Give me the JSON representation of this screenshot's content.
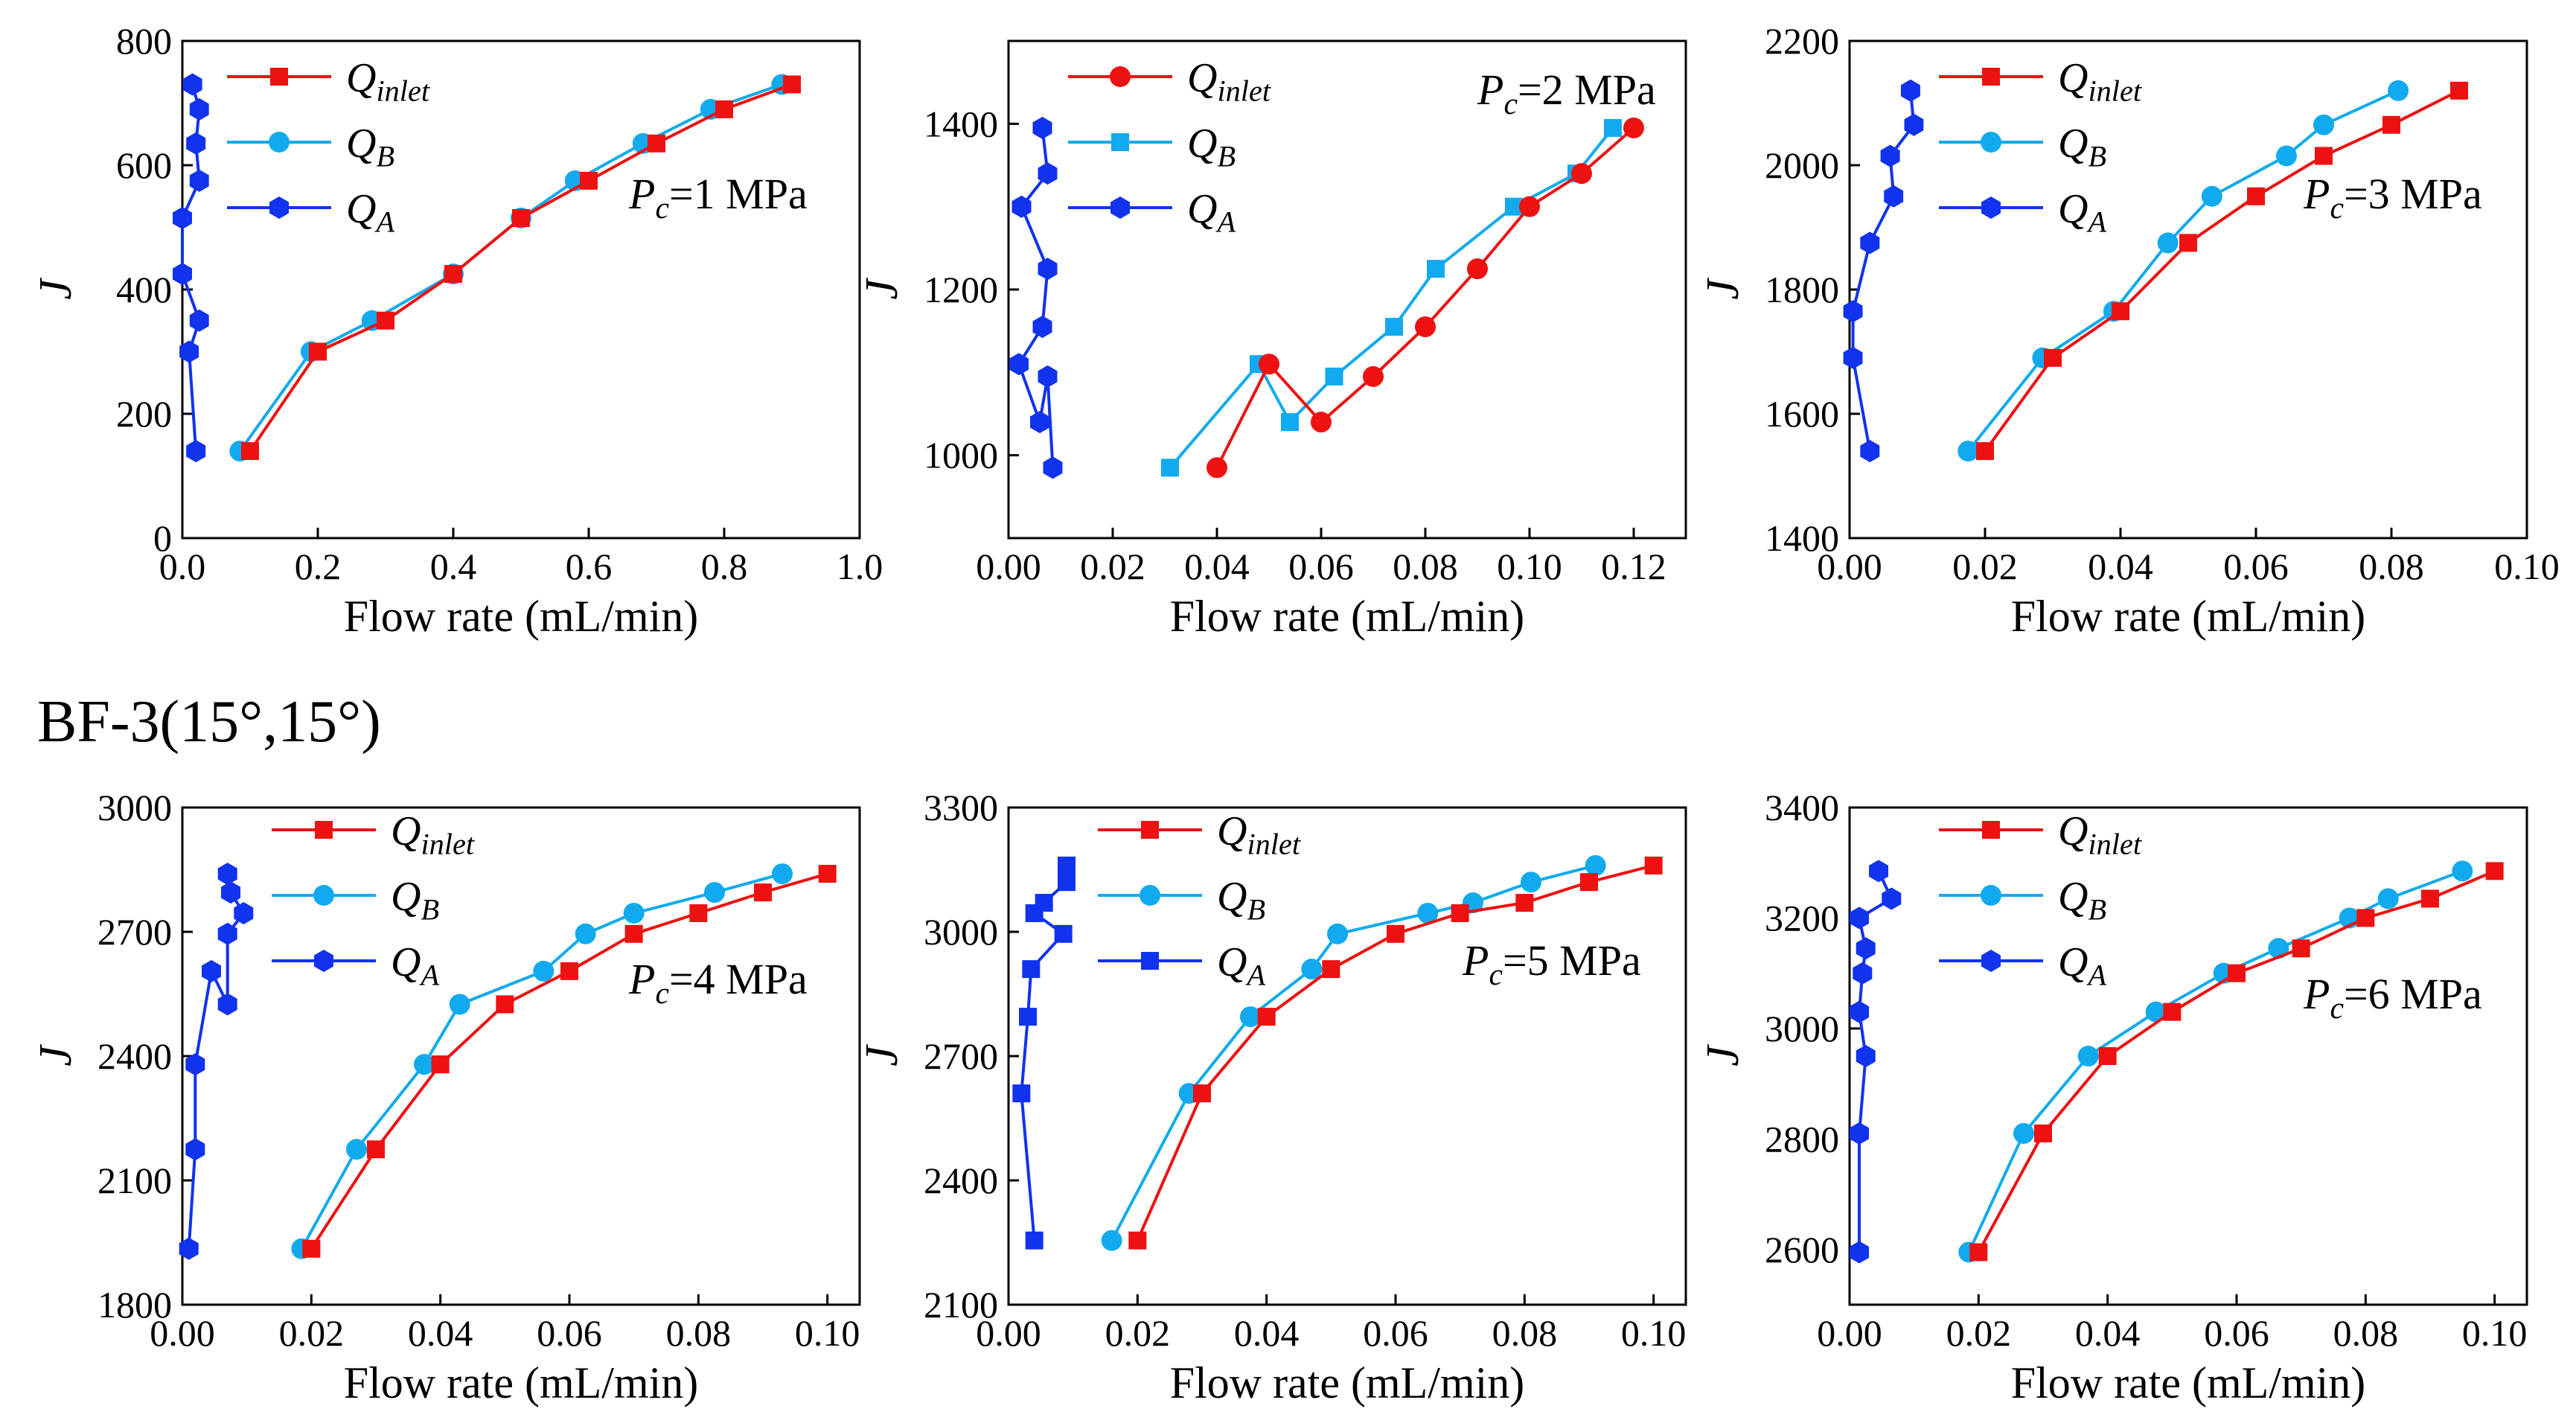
{
  "figure_label": "BF-3(15°,15°)",
  "colors": {
    "inlet": "#ee1111",
    "b": "#11aaee",
    "a": "#1133ee",
    "axis": "#000000"
  },
  "chart_data": [
    {
      "type": "line",
      "title": "",
      "annotation": {
        "prefix": "P",
        "sub": "c",
        "text": "=1 MPa"
      },
      "xlabel": "Flow rate (mL/min)",
      "ylabel": "J",
      "xlim": [
        0.0,
        1.0
      ],
      "ylim": [
        0,
        800
      ],
      "xticks": [
        "0.0",
        "0.2",
        "0.4",
        "0.6",
        "0.8",
        "1.0"
      ],
      "yticks": [
        "0",
        "200",
        "400",
        "600",
        "800"
      ],
      "series": [
        {
          "name": "Q",
          "sub": "inlet",
          "key": "inlet",
          "marker": "square",
          "x": [
            0.1,
            0.2,
            0.3,
            0.4,
            0.5,
            0.6,
            0.7,
            0.8,
            0.9
          ],
          "y": [
            140,
            300,
            350,
            425,
            515,
            575,
            635,
            690,
            730
          ]
        },
        {
          "name": "Q",
          "sub": "B",
          "key": "b",
          "marker": "circle",
          "x": [
            0.085,
            0.19,
            0.28,
            0.4,
            0.5,
            0.58,
            0.68,
            0.78,
            0.885
          ],
          "y": [
            140,
            300,
            350,
            425,
            515,
            575,
            635,
            690,
            730
          ]
        },
        {
          "name": "Q",
          "sub": "A",
          "key": "a",
          "marker": "hexagon",
          "x": [
            0.02,
            0.01,
            0.025,
            0.0,
            0.0,
            0.025,
            0.02,
            0.025,
            0.015
          ],
          "y": [
            140,
            300,
            350,
            425,
            515,
            575,
            635,
            690,
            730
          ]
        }
      ]
    },
    {
      "type": "line",
      "title": "",
      "annotation": {
        "prefix": "P",
        "sub": "c",
        "text": "=2 MPa"
      },
      "xlabel": "Flow rate (mL/min)",
      "ylabel": "J",
      "xlim": [
        0.0,
        0.13
      ],
      "ylim": [
        900,
        1500
      ],
      "xticks": [
        "0.00",
        "0.02",
        "0.04",
        "0.06",
        "0.08",
        "0.10",
        "0.12"
      ],
      "yticks": [
        "1000",
        "1200",
        "1400"
      ],
      "series": [
        {
          "name": "Q",
          "sub": "inlet",
          "key": "inlet",
          "marker": "circle",
          "x": [
            0.04,
            0.05,
            0.06,
            0.07,
            0.08,
            0.09,
            0.1,
            0.11,
            0.12
          ],
          "y": [
            985,
            1110,
            1040,
            1095,
            1155,
            1225,
            1300,
            1340,
            1395
          ]
        },
        {
          "name": "Q",
          "sub": "B",
          "key": "b",
          "marker": "square",
          "x": [
            0.031,
            0.048,
            0.054,
            0.0625,
            0.074,
            0.082,
            0.097,
            0.109,
            0.116
          ],
          "y": [
            985,
            1110,
            1040,
            1095,
            1155,
            1225,
            1300,
            1340,
            1395
          ]
        },
        {
          "name": "Q",
          "sub": "A",
          "key": "a",
          "marker": "hexagon",
          "x": [
            0.0085,
            0.0075,
            0.006,
            0.002,
            0.0065,
            0.0075,
            0.0025,
            0.0075,
            0.0065
          ],
          "y": [
            985,
            1095,
            1040,
            1110,
            1155,
            1225,
            1300,
            1340,
            1395
          ]
        }
      ]
    },
    {
      "type": "line",
      "title": "",
      "annotation": {
        "prefix": "P",
        "sub": "c",
        "text": "=3 MPa"
      },
      "xlabel": "Flow rate (mL/min)",
      "ylabel": "J",
      "xlim": [
        0.0,
        0.1
      ],
      "ylim": [
        1400,
        2200
      ],
      "xticks": [
        "0.00",
        "0.02",
        "0.04",
        "0.06",
        "0.08",
        "0.10"
      ],
      "yticks": [
        "1400",
        "1600",
        "1800",
        "2000",
        "2200"
      ],
      "series": [
        {
          "name": "Q",
          "sub": "inlet",
          "key": "inlet",
          "marker": "square",
          "x": [
            0.02,
            0.03,
            0.04,
            0.05,
            0.06,
            0.07,
            0.08,
            0.09
          ],
          "y": [
            1540,
            1690,
            1765,
            1875,
            1950,
            2015,
            2065,
            2120
          ]
        },
        {
          "name": "Q",
          "sub": "B",
          "key": "b",
          "marker": "circle",
          "x": [
            0.0175,
            0.0285,
            0.039,
            0.047,
            0.0535,
            0.0645,
            0.07,
            0.081
          ],
          "y": [
            1540,
            1690,
            1765,
            1875,
            1950,
            2015,
            2065,
            2120
          ]
        },
        {
          "name": "Q",
          "sub": "A",
          "key": "a",
          "marker": "hexagon",
          "x": [
            0.003,
            0.0005,
            0.0005,
            0.003,
            0.0065,
            0.006,
            0.0095,
            0.009
          ],
          "y": [
            1540,
            1690,
            1765,
            1875,
            1950,
            2015,
            2065,
            2120
          ]
        }
      ]
    },
    {
      "type": "line",
      "title": "",
      "annotation": {
        "prefix": "P",
        "sub": "c",
        "text": "=4 MPa"
      },
      "xlabel": "Flow rate (mL/min)",
      "ylabel": "J",
      "xlim": [
        0.0,
        0.105
      ],
      "ylim": [
        1800,
        3000
      ],
      "xticks": [
        "0.00",
        "0.02",
        "0.04",
        "0.06",
        "0.08",
        "0.10"
      ],
      "yticks": [
        "1800",
        "2100",
        "2400",
        "2700",
        "3000"
      ],
      "series": [
        {
          "name": "Q",
          "sub": "inlet",
          "key": "inlet",
          "marker": "square",
          "x": [
            0.02,
            0.03,
            0.04,
            0.05,
            0.06,
            0.07,
            0.08,
            0.09,
            0.1
          ],
          "y": [
            1935,
            2175,
            2380,
            2525,
            2605,
            2695,
            2745,
            2795,
            2840
          ]
        },
        {
          "name": "Q",
          "sub": "B",
          "key": "b",
          "marker": "circle",
          "x": [
            0.0185,
            0.027,
            0.0375,
            0.043,
            0.056,
            0.0625,
            0.07,
            0.0825,
            0.093
          ],
          "y": [
            1935,
            2175,
            2380,
            2525,
            2605,
            2695,
            2745,
            2795,
            2840
          ]
        },
        {
          "name": "Q",
          "sub": "A",
          "key": "a",
          "marker": "hexagon",
          "x": [
            0.001,
            0.002,
            0.002,
            0.0045,
            0.007,
            0.007,
            0.0095,
            0.0075,
            0.007
          ],
          "y": [
            1935,
            2175,
            2380,
            2605,
            2525,
            2695,
            2745,
            2795,
            2840
          ]
        }
      ]
    },
    {
      "type": "line",
      "title": "",
      "annotation": {
        "prefix": "P",
        "sub": "c",
        "text": "=5 MPa"
      },
      "xlabel": "Flow rate (mL/min)",
      "ylabel": "J",
      "xlim": [
        0.0,
        0.105
      ],
      "ylim": [
        2100,
        3300
      ],
      "xticks": [
        "0.00",
        "0.02",
        "0.04",
        "0.06",
        "0.08",
        "0.10"
      ],
      "yticks": [
        "2100",
        "2400",
        "2700",
        "3000",
        "3300"
      ],
      "series": [
        {
          "name": "Q",
          "sub": "inlet",
          "key": "inlet",
          "marker": "square",
          "x": [
            0.02,
            0.03,
            0.04,
            0.05,
            0.06,
            0.07,
            0.08,
            0.09,
            0.1
          ],
          "y": [
            2255,
            2610,
            2795,
            2910,
            2995,
            3045,
            3070,
            3120,
            3160
          ]
        },
        {
          "name": "Q",
          "sub": "B",
          "key": "b",
          "marker": "circle",
          "x": [
            0.016,
            0.028,
            0.0375,
            0.047,
            0.051,
            0.065,
            0.072,
            0.081,
            0.091
          ],
          "y": [
            2255,
            2610,
            2795,
            2910,
            2995,
            3045,
            3070,
            3120,
            3160
          ]
        },
        {
          "name": "Q",
          "sub": "A",
          "key": "a",
          "marker": "square",
          "x": [
            0.004,
            0.002,
            0.003,
            0.0035,
            0.0085,
            0.004,
            0.0055,
            0.009,
            0.009
          ],
          "y": [
            2255,
            2610,
            2795,
            2910,
            2995,
            3045,
            3070,
            3120,
            3160
          ]
        }
      ]
    },
    {
      "type": "line",
      "title": "",
      "annotation": {
        "prefix": "P",
        "sub": "c",
        "text": "=6 MPa"
      },
      "xlabel": "Flow rate (mL/min)",
      "ylabel": "J",
      "xlim": [
        0.0,
        0.105
      ],
      "ylim": [
        2500,
        3400
      ],
      "xticks": [
        "0.00",
        "0.02",
        "0.04",
        "0.06",
        "0.08",
        "0.10"
      ],
      "yticks": [
        "2600",
        "2800",
        "3000",
        "3200",
        "3400"
      ],
      "series": [
        {
          "name": "Q",
          "sub": "inlet",
          "key": "inlet",
          "marker": "square",
          "x": [
            0.02,
            0.03,
            0.04,
            0.05,
            0.06,
            0.07,
            0.08,
            0.09,
            0.1
          ],
          "y": [
            2595,
            2810,
            2950,
            3030,
            3100,
            3145,
            3200,
            3235,
            3285
          ]
        },
        {
          "name": "Q",
          "sub": "B",
          "key": "b",
          "marker": "circle",
          "x": [
            0.0185,
            0.027,
            0.037,
            0.0475,
            0.058,
            0.0665,
            0.0775,
            0.0835,
            0.095
          ],
          "y": [
            2595,
            2810,
            2950,
            3030,
            3100,
            3145,
            3200,
            3235,
            3285
          ]
        },
        {
          "name": "Q",
          "sub": "A",
          "key": "a",
          "marker": "hexagon",
          "x": [
            0.0015,
            0.0015,
            0.0025,
            0.0015,
            0.002,
            0.0025,
            0.0015,
            0.0065,
            0.0045
          ],
          "y": [
            2595,
            2810,
            2950,
            3030,
            3100,
            3145,
            3200,
            3235,
            3285
          ]
        }
      ]
    }
  ]
}
